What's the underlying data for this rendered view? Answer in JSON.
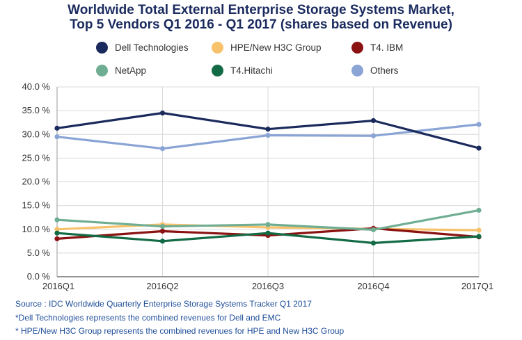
{
  "title_line1": "Worldwide Total External Enterprise Storage Systems Market,",
  "title_line2": "Top 5 Vendors Q1 2016 - Q1 2017 (shares based on Revenue)",
  "legend_items": [
    {
      "label": "Dell Technologies",
      "color": "#1b2a5c"
    },
    {
      "label": "HPE/New H3C Group",
      "color": "#f7c26b"
    },
    {
      "label": "T4. IBM",
      "color": "#8b1212"
    },
    {
      "label": "NetApp",
      "color": "#6fae93"
    },
    {
      "label": "T4.Hitachi",
      "color": "#126b45"
    },
    {
      "label": "Others",
      "color": "#8aa4d6"
    }
  ],
  "chart_data": {
    "type": "line",
    "categories": [
      "2016Q1",
      "2016Q2",
      "2016Q3",
      "2016Q4",
      "2017Q1"
    ],
    "y_ticks": [
      "0.0 %",
      "5.0 %",
      "10.0 %",
      "15.0 %",
      "20.0 %",
      "25.0 %",
      "30.0 %",
      "35.0 %",
      "40.0 %"
    ],
    "ylim": [
      0,
      40
    ],
    "grid": true,
    "legend_position": "top",
    "series": [
      {
        "name": "Dell Technologies",
        "color": "#1b2a5c",
        "values": [
          31.3,
          34.5,
          31.1,
          32.9,
          27.1
        ]
      },
      {
        "name": "HPE/New H3C Group",
        "color": "#f7c26b",
        "values": [
          10.0,
          11.0,
          10.4,
          10.1,
          9.8
        ]
      },
      {
        "name": "T4. IBM",
        "color": "#8b1212",
        "values": [
          8.0,
          9.6,
          8.7,
          10.2,
          8.4
        ]
      },
      {
        "name": "NetApp",
        "color": "#6fae93",
        "values": [
          12.0,
          10.6,
          11.0,
          9.9,
          14.0
        ]
      },
      {
        "name": "T4.Hitachi",
        "color": "#126b45",
        "values": [
          9.2,
          7.5,
          9.2,
          7.1,
          8.5
        ]
      },
      {
        "name": "Others",
        "color": "#8aa4d6",
        "values": [
          29.5,
          27.0,
          29.8,
          29.7,
          32.1
        ]
      }
    ]
  },
  "notes": [
    "Source : IDC Worldwide Quarterly Enterprise Storage Systems Tracker Q1 2017",
    "*Dell Technologies represents the combined revenues for Dell and EMC",
    "* HPE/New H3C Group represents the combined revenues for HPE and New H3C Group"
  ]
}
